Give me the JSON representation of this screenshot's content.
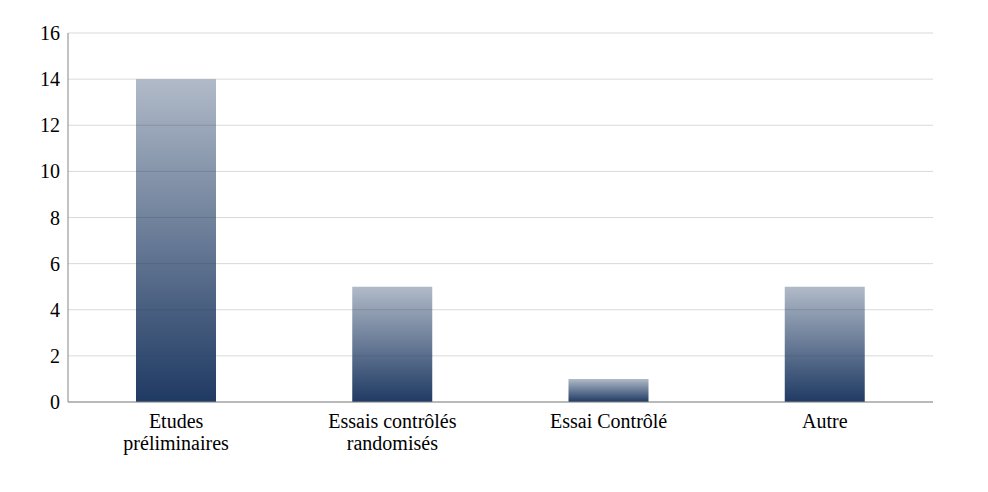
{
  "chart_data": {
    "type": "bar",
    "categories": [
      "Etudes préliminaires",
      "Essais contrôlés randomisés",
      "Essai Contrôlé",
      "Autre"
    ],
    "values": [
      14,
      5,
      1,
      5
    ],
    "color": "#1f3a63",
    "ylim": [
      0,
      16
    ],
    "yticks": [
      0,
      2,
      4,
      6,
      8,
      10,
      12,
      14,
      16
    ],
    "grid": true
  }
}
